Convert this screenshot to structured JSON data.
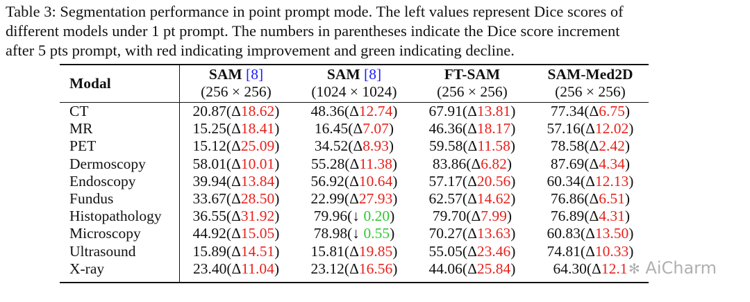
{
  "caption": {
    "lines": [
      "Table 3: Segmentation performance in point prompt mode. The left values represent Dice scores of",
      "different models under 1 pt prompt. The numbers in parentheses indicate the Dice score increment",
      "after 5 pts prompt, with red indicating improvement and green indicating decline."
    ]
  },
  "colors": {
    "up": "#e8201a",
    "down": "#2ec82e",
    "ref": "#1a1aff"
  },
  "table": {
    "modal_header": "Modal",
    "columns": [
      {
        "name": "SAM",
        "ref": "[8]",
        "size": "(256 × 256)"
      },
      {
        "name": "SAM",
        "ref": "[8]",
        "size": "(1024 × 1024)"
      },
      {
        "name": "FT-SAM",
        "size": "(256 × 256)"
      },
      {
        "name": "SAM-Med2D",
        "size": "(256 × 256)"
      }
    ],
    "rows": [
      {
        "modal": "CT",
        "cells": [
          {
            "value": "20.87",
            "open": "(Δ",
            "change": "18.62",
            "close": ")",
            "trend": "up"
          },
          {
            "value": "48.36",
            "open": "(Δ",
            "change": "12.74",
            "close": ")",
            "trend": "up"
          },
          {
            "value": "67.91",
            "open": "(Δ",
            "change": "13.81",
            "close": ")",
            "trend": "up"
          },
          {
            "value": "77.34",
            "open": "(Δ",
            "change": "6.75",
            "close": ")",
            "trend": "up"
          }
        ]
      },
      {
        "modal": "MR",
        "cells": [
          {
            "value": "15.25",
            "open": "(Δ",
            "change": "18.41",
            "close": ")",
            "trend": "up"
          },
          {
            "value": "16.45",
            "open": "(Δ",
            "change": "7.07",
            "close": ")",
            "trend": "up"
          },
          {
            "value": "46.36",
            "open": "(Δ",
            "change": "18.17",
            "close": ")",
            "trend": "up"
          },
          {
            "value": "57.16",
            "open": "(Δ",
            "change": "12.02",
            "close": ")",
            "trend": "up"
          }
        ]
      },
      {
        "modal": "PET",
        "cells": [
          {
            "value": "15.12",
            "open": "(Δ",
            "change": "25.09",
            "close": ")",
            "trend": "up"
          },
          {
            "value": "34.52",
            "open": "(Δ",
            "change": "8.93",
            "close": ")",
            "trend": "up"
          },
          {
            "value": "59.58",
            "open": "(Δ",
            "change": "11.58",
            "close": ")",
            "trend": "up"
          },
          {
            "value": "78.58",
            "open": "(Δ",
            "change": "2.42",
            "close": ")",
            "trend": "up"
          }
        ]
      },
      {
        "modal": "Dermoscopy",
        "cells": [
          {
            "value": "58.01",
            "open": "(Δ",
            "change": "10.01",
            "close": ")",
            "trend": "up"
          },
          {
            "value": "55.28",
            "open": "(Δ",
            "change": "11.38",
            "close": ")",
            "trend": "up"
          },
          {
            "value": "83.86",
            "open": "(Δ",
            "change": "6.82",
            "close": ")",
            "trend": "up"
          },
          {
            "value": "87.69",
            "open": "(Δ",
            "change": "4.34",
            "close": ")",
            "trend": "up"
          }
        ]
      },
      {
        "modal": "Endoscopy",
        "cells": [
          {
            "value": "39.94",
            "open": "(Δ",
            "change": "13.84",
            "close": ")",
            "trend": "up"
          },
          {
            "value": "56.92",
            "open": "(Δ",
            "change": "10.64",
            "close": ")",
            "trend": "up"
          },
          {
            "value": "57.17",
            "open": "(Δ",
            "change": "20.56",
            "close": ")",
            "trend": "up"
          },
          {
            "value": "60.34",
            "open": "(Δ",
            "change": "12.13",
            "close": ")",
            "trend": "up"
          }
        ]
      },
      {
        "modal": "Fundus",
        "cells": [
          {
            "value": "33.67",
            "open": "(Δ",
            "change": "28.50",
            "close": ")",
            "trend": "up"
          },
          {
            "value": "22.99",
            "open": "(Δ",
            "change": "27.93",
            "close": ")",
            "trend": "up"
          },
          {
            "value": "62.57",
            "open": "(Δ",
            "change": "14.62",
            "close": ")",
            "trend": "up"
          },
          {
            "value": "76.86",
            "open": "(Δ",
            "change": "6.51",
            "close": ")",
            "trend": "up"
          }
        ]
      },
      {
        "modal": "Histopathology",
        "cells": [
          {
            "value": "36.55",
            "open": "(Δ",
            "change": "31.92",
            "close": ")",
            "trend": "up"
          },
          {
            "value": "79.96",
            "open": "(↓ ",
            "change": "0.20",
            "close": ")",
            "trend": "down"
          },
          {
            "value": "79.70",
            "open": "(Δ",
            "change": "7.99",
            "close": ")",
            "trend": "up"
          },
          {
            "value": "76.89",
            "open": "(Δ",
            "change": "4.31",
            "close": ")",
            "trend": "up"
          }
        ]
      },
      {
        "modal": "Microscopy",
        "cells": [
          {
            "value": "44.92",
            "open": "(Δ",
            "change": "15.05",
            "close": ")",
            "trend": "up"
          },
          {
            "value": "78.98",
            "open": "(↓ ",
            "change": "0.55",
            "close": ")",
            "trend": "down"
          },
          {
            "value": "70.27",
            "open": "(Δ",
            "change": "13.63",
            "close": ")",
            "trend": "up"
          },
          {
            "value": "60.83",
            "open": "(Δ",
            "change": "13.50",
            "close": ")",
            "trend": "up"
          }
        ]
      },
      {
        "modal": "Ultrasound",
        "cells": [
          {
            "value": "15.89",
            "open": "(Δ",
            "change": "14.51",
            "close": ")",
            "trend": "up"
          },
          {
            "value": "15.81",
            "open": "(Δ",
            "change": "19.85",
            "close": ")",
            "trend": "up"
          },
          {
            "value": "55.05",
            "open": "(Δ",
            "change": "23.46",
            "close": ")",
            "trend": "up"
          },
          {
            "value": "74.81",
            "open": "(Δ",
            "change": "10.33",
            "close": ")",
            "trend": "up"
          }
        ]
      },
      {
        "modal": "X-ray",
        "cells": [
          {
            "value": "23.40",
            "open": "(Δ",
            "change": "11.04",
            "close": ")",
            "trend": "up"
          },
          {
            "value": "23.12",
            "open": "(Δ",
            "change": "16.56",
            "close": ")",
            "trend": "up"
          },
          {
            "value": "44.06",
            "open": "(Δ",
            "change": "25.84",
            "close": ")",
            "trend": "up"
          },
          {
            "value": "64.30",
            "open": "(Δ",
            "change": "12.1",
            "close": "",
            "trend": "up"
          }
        ]
      }
    ]
  },
  "watermark": "AiCharm"
}
